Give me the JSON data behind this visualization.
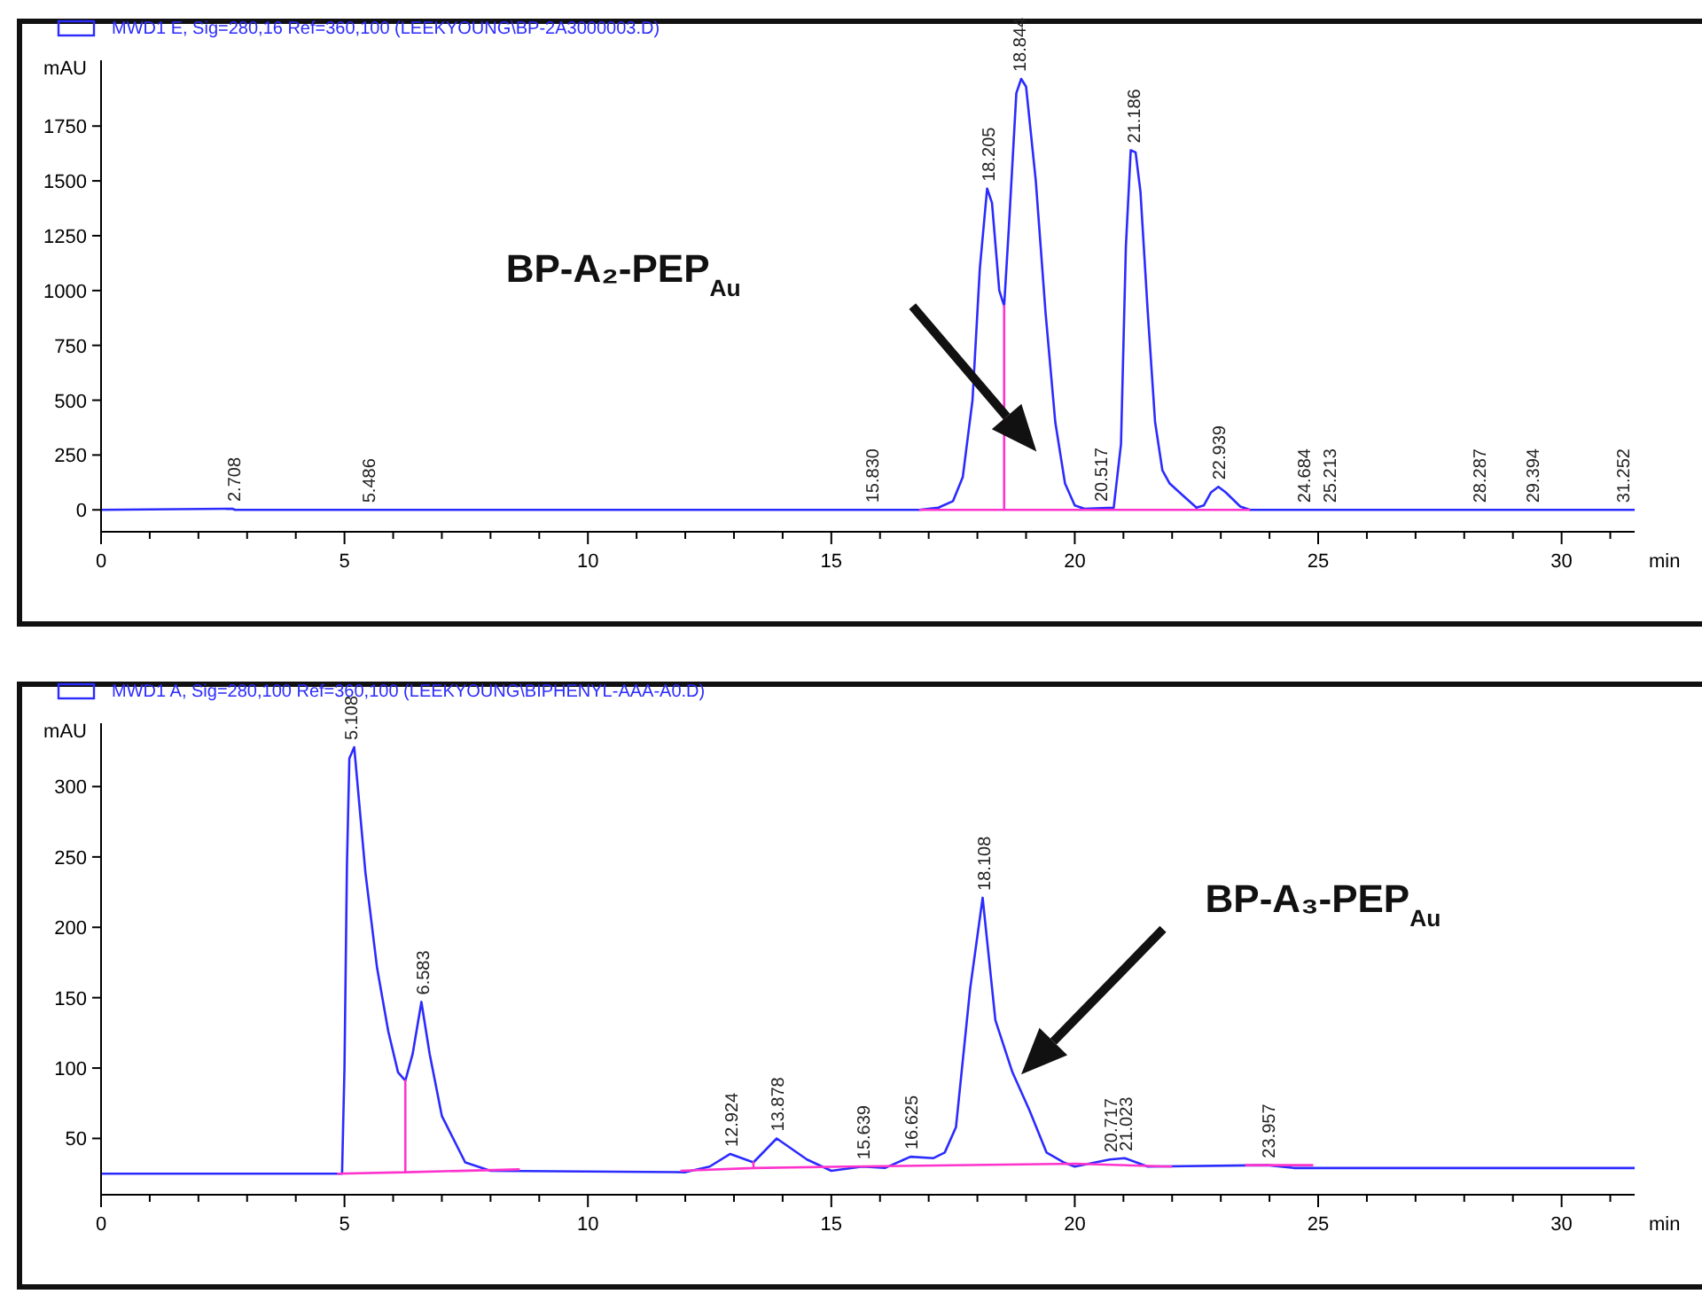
{
  "chart_data": [
    {
      "type": "line",
      "ylabel": "mAU",
      "xlabel": "min",
      "xlim": [
        0,
        31.5
      ],
      "ylim": [
        -100,
        2050
      ],
      "xticks": [
        0,
        {
          "value": 1,
          "label": null
        },
        {
          "value": 2,
          "label": null
        },
        {
          "value": 3,
          "label": null
        },
        {
          "value": 4,
          "label": null
        },
        5,
        {
          "value": 6,
          "label": null
        },
        {
          "value": 7,
          "label": null
        },
        {
          "value": 8,
          "label": null
        },
        {
          "value": 9,
          "label": null
        },
        10,
        {
          "value": 11,
          "label": null
        },
        {
          "value": 12,
          "label": null
        },
        {
          "value": 13,
          "label": null
        },
        {
          "value": 14,
          "label": null
        },
        15,
        {
          "value": 16,
          "label": null
        },
        {
          "value": 17,
          "label": null
        },
        {
          "value": 18,
          "label": null
        },
        {
          "value": 19,
          "label": null
        },
        20,
        {
          "value": 21,
          "label": null
        },
        {
          "value": 22,
          "label": null
        },
        {
          "value": 23,
          "label": null
        },
        {
          "value": 24,
          "label": null
        },
        25,
        {
          "value": 26,
          "label": null
        },
        {
          "value": 27,
          "label": null
        },
        {
          "value": 28,
          "label": null
        },
        {
          "value": 29,
          "label": null
        },
        30,
        {
          "value": 31,
          "label": null
        }
      ],
      "yticks": [
        0,
        250,
        500,
        750,
        1000,
        1250,
        1500,
        1750
      ],
      "legend": "top left",
      "grid": false,
      "series": [
        {
          "name": "MWD1 E, Sig=280,16 Ref=360,100 (LEEKYOUNG\\BP-2A3000003.D)",
          "color": "#2b2bff",
          "x": [
            0,
            2.7,
            2.75,
            16.8,
            17.2,
            17.5,
            17.7,
            17.9,
            18.05,
            18.2,
            18.3,
            18.45,
            18.55,
            18.65,
            18.8,
            18.9,
            19.0,
            19.2,
            19.4,
            19.6,
            19.8,
            20.0,
            20.2,
            20.8,
            20.95,
            21.05,
            21.15,
            21.25,
            21.35,
            21.5,
            21.65,
            21.8,
            21.95,
            22.2,
            22.5,
            22.65,
            22.8,
            22.95,
            23.1,
            23.4,
            23.6,
            31.5
          ],
          "values": [
            0,
            5,
            0,
            0,
            10,
            40,
            150,
            500,
            1100,
            1465,
            1400,
            1000,
            930,
            1300,
            1900,
            1965,
            1930,
            1500,
            900,
            400,
            120,
            20,
            5,
            10,
            300,
            1200,
            1640,
            1630,
            1450,
            900,
            400,
            180,
            120,
            70,
            10,
            20,
            80,
            105,
            80,
            15,
            0,
            0
          ]
        },
        {
          "color": "#ff33cc",
          "x": [
            16.8,
            18.55,
            18.55,
            18.55,
            22.5,
            23.6
          ],
          "values": [
            0,
            0,
            930,
            0,
            0,
            0
          ]
        }
      ],
      "annotations": [
        "BP-A₂-PEP$_{Au}$",
        {
          "text": "2.708",
          "x": 2.708,
          "y": 5
        },
        {
          "text": "5.486",
          "x": 5.486,
          "y": 0
        },
        {
          "text": "15.830",
          "x": 15.83,
          "y": 0
        },
        {
          "text": "18.205",
          "x": 18.205,
          "y": 1465
        },
        {
          "text": "18.844",
          "x": 18.844,
          "y": 1965
        },
        {
          "text": "20.517",
          "x": 20.517,
          "y": 5
        },
        {
          "text": "21.186",
          "x": 21.186,
          "y": 1640
        },
        {
          "text": "22.939",
          "x": 22.939,
          "y": 105
        },
        {
          "text": "24.684",
          "x": 24.684,
          "y": 0
        },
        {
          "text": "25.213",
          "x": 25.213,
          "y": 0
        },
        {
          "text": "28.287",
          "x": 28.287,
          "y": 0
        },
        {
          "text": "29.394",
          "x": 29.394,
          "y": 0
        },
        {
          "text": "31.252",
          "x": 31.252,
          "y": 0
        }
      ]
    },
    {
      "type": "line",
      "ylabel": "mAU",
      "xlabel": "min",
      "xlim": [
        0,
        31.5
      ],
      "ylim": [
        10,
        345
      ],
      "xticks": [
        0,
        {
          "value": 1,
          "label": null
        },
        {
          "value": 2,
          "label": null
        },
        {
          "value": 3,
          "label": null
        },
        {
          "value": 4,
          "label": null
        },
        5,
        {
          "value": 6,
          "label": null
        },
        {
          "value": 7,
          "label": null
        },
        {
          "value": 8,
          "label": null
        },
        {
          "value": 9,
          "label": null
        },
        10,
        {
          "value": 11,
          "label": null
        },
        {
          "value": 12,
          "label": null
        },
        {
          "value": 13,
          "label": null
        },
        {
          "value": 14,
          "label": null
        },
        15,
        {
          "value": 16,
          "label": null
        },
        {
          "value": 17,
          "label": null
        },
        {
          "value": 18,
          "label": null
        },
        {
          "value": 19,
          "label": null
        },
        20,
        {
          "value": 21,
          "label": null
        },
        {
          "value": 22,
          "label": null
        },
        {
          "value": 23,
          "label": null
        },
        {
          "value": 24,
          "label": null
        },
        25,
        {
          "value": 26,
          "label": null
        },
        {
          "value": 27,
          "label": null
        },
        {
          "value": 28,
          "label": null
        },
        {
          "value": 29,
          "label": null
        },
        30,
        {
          "value": 31,
          "label": null
        }
      ],
      "yticks": [
        50,
        100,
        150,
        200,
        250,
        300
      ],
      "legend": "top left",
      "grid": false,
      "series": [
        {
          "name": "MWD1 A, Sig=280,100 Ref=360,100 (LEEKYOUNG\\BIPHENYL-AAA-A0.D)",
          "color": "#2b2bff",
          "x": [
            0,
            4.95,
            5.0,
            5.05,
            5.1,
            5.2,
            5.43,
            5.67,
            5.9,
            6.1,
            6.25,
            6.4,
            6.58,
            6.75,
            7.0,
            7.48,
            8.0,
            12.0,
            12.5,
            12.924,
            13.4,
            13.878,
            14.5,
            15.0,
            15.639,
            16.1,
            16.625,
            17.1,
            17.33,
            17.56,
            17.85,
            18.108,
            18.37,
            18.72,
            19.07,
            19.42,
            19.77,
            20.0,
            20.717,
            21.023,
            21.5,
            23.957,
            24.5,
            31.5
          ],
          "values": [
            25,
            25,
            100,
            243,
            320,
            328,
            239,
            171,
            126,
            97,
            91,
            110,
            147,
            110,
            66,
            33,
            27,
            26,
            30,
            39,
            33,
            50,
            35,
            27,
            30,
            29,
            37,
            36,
            40,
            58,
            156,
            221,
            134,
            97,
            70,
            40,
            33,
            30,
            35,
            36,
            30,
            31,
            29,
            29
          ]
        },
        {
          "color": "#ff33cc",
          "x": [
            4.85,
            6.25,
            6.25,
            6.25,
            8.6,
            null,
            11.9,
            13.4,
            13.4,
            13.4,
            15.3,
            20.0,
            22.0,
            null,
            23.5,
            24.9
          ],
          "values": [
            25,
            26,
            91,
            26,
            28,
            null,
            27,
            29,
            33,
            29,
            30,
            32,
            30,
            null,
            31,
            31
          ]
        }
      ],
      "annotations": [
        "BP-A₃-PEP$_{Au}$",
        {
          "text": "5.108",
          "x": 5.108,
          "y": 328
        },
        {
          "text": "6.583",
          "x": 6.583,
          "y": 147
        },
        {
          "text": "12.924",
          "x": 12.924,
          "y": 39
        },
        {
          "text": "13.878",
          "x": 13.878,
          "y": 50
        },
        {
          "text": "15.639",
          "x": 15.639,
          "y": 30
        },
        {
          "text": "16.625",
          "x": 16.625,
          "y": 37
        },
        {
          "text": "18.108",
          "x": 18.108,
          "y": 221
        },
        {
          "text": "20.717",
          "x": 20.717,
          "y": 35
        },
        {
          "text": "21.023",
          "x": 21.023,
          "y": 36
        },
        {
          "text": "23.957",
          "x": 23.957,
          "y": 31
        }
      ]
    }
  ]
}
